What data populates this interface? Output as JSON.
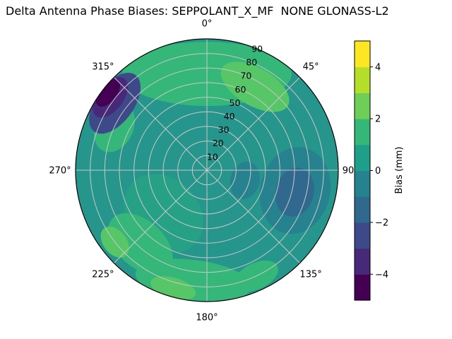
{
  "chart_data": {
    "type": "heatmap",
    "projection": "polar",
    "title": "Delta Antenna Phase Biases: SEPPOLANT_X_MF  NONE GLONASS-L2",
    "azimuth_tick_labels": [
      {
        "angle": 0,
        "label": "0°"
      },
      {
        "angle": 45,
        "label": "45°"
      },
      {
        "angle": 90,
        "label": "90"
      },
      {
        "angle": 135,
        "label": "135°"
      },
      {
        "angle": 180,
        "label": "180°"
      },
      {
        "angle": 225,
        "label": "225°"
      },
      {
        "angle": 270,
        "label": "270°"
      },
      {
        "angle": 315,
        "label": "315°"
      }
    ],
    "radial_ticks": [
      10,
      20,
      30,
      40,
      50,
      60,
      70,
      80,
      90
    ],
    "radial_max": 90,
    "radial_label_azimuth_deg": 22.5,
    "grid_color": "#c8c8c8",
    "base_color": "#26958b",
    "base_bias_mm": 0.5,
    "regions": [
      {
        "name": "lower-left-soft-green",
        "azimuth_deg": 225,
        "radius": 42,
        "tangential_halfwidth": 30,
        "radial_halfwidth": 24,
        "color": "#27a186",
        "bias_mm": 1
      },
      {
        "name": "top-green-band",
        "azimuth_deg": 0,
        "radius": 66,
        "tangential_halfwidth": 58,
        "radial_halfwidth": 22,
        "color": "#35b779",
        "bias_mm": 1.5
      },
      {
        "name": "top-right-bright-green",
        "azimuth_deg": 30,
        "radius": 66,
        "tangential_halfwidth": 26,
        "radial_halfwidth": 13,
        "color": "#56c667",
        "bias_mm": 2
      },
      {
        "name": "upper-left-green",
        "azimuth_deg": 295,
        "radius": 70,
        "tangential_halfwidth": 18,
        "radial_halfwidth": 13,
        "color": "#35b779",
        "bias_mm": 1.5
      },
      {
        "name": "right-dark-halo",
        "azimuth_deg": 103,
        "radius": 62,
        "tangential_halfwidth": 30,
        "radial_halfwidth": 24,
        "color": "#26828e",
        "bias_mm": -0.5
      },
      {
        "name": "right-dark-core",
        "azimuth_deg": 104,
        "radius": 62,
        "tangential_halfwidth": 17,
        "radial_halfwidth": 13,
        "color": "#31688e",
        "bias_mm": -1.5
      },
      {
        "name": "center-right-dark",
        "azimuth_deg": 105,
        "radius": 27,
        "tangential_halfwidth": 13,
        "radial_halfwidth": 10,
        "color": "#26828e",
        "bias_mm": -0.5
      },
      {
        "name": "bottom-right-rim-green",
        "azimuth_deg": 155,
        "radius": 80,
        "tangential_halfwidth": 16,
        "radial_halfwidth": 9,
        "color": "#35b779",
        "bias_mm": 1.5
      },
      {
        "name": "bottom-green-arc",
        "azimuth_deg": 187,
        "radius": 76,
        "tangential_halfwidth": 40,
        "radial_halfwidth": 14,
        "color": "#35b779",
        "bias_mm": 1.5
      },
      {
        "name": "bottom-left-green",
        "azimuth_deg": 222,
        "radius": 68,
        "tangential_halfwidth": 26,
        "radial_halfwidth": 16,
        "color": "#35b779",
        "bias_mm": 1.5
      },
      {
        "name": "bottom-bright-green-1",
        "azimuth_deg": 196,
        "radius": 84,
        "tangential_halfwidth": 16,
        "radial_halfwidth": 7,
        "color": "#56c667",
        "bias_mm": 2
      },
      {
        "name": "bottom-bright-green-2",
        "azimuth_deg": 232,
        "radius": 80,
        "tangential_halfwidth": 12,
        "radial_halfwidth": 8,
        "color": "#56c667",
        "bias_mm": 2
      },
      {
        "name": "rim-purple-halo",
        "azimuth_deg": 306,
        "radius": 78,
        "tangential_halfwidth": 24,
        "radial_halfwidth": 13,
        "color": "#3e4989",
        "bias_mm": -2.5
      },
      {
        "name": "rim-purple-mid",
        "azimuth_deg": 307,
        "radius": 83,
        "tangential_halfwidth": 16,
        "radial_halfwidth": 9,
        "color": "#482878",
        "bias_mm": -3.5
      },
      {
        "name": "rim-purple-core",
        "azimuth_deg": 308,
        "radius": 86,
        "tangential_halfwidth": 11,
        "radial_halfwidth": 6,
        "color": "#440154",
        "bias_mm": -4.5
      }
    ],
    "colorbar": {
      "label": "Bias (mm)",
      "min": -5,
      "max": 5,
      "tick_values": [
        -4,
        -2,
        0,
        2,
        4
      ],
      "tick_labels": [
        "−4",
        "−2",
        "0",
        "2",
        "4"
      ],
      "band_colors": [
        "#440154",
        "#482878",
        "#3e4989",
        "#31688e",
        "#26828e",
        "#1f9e89",
        "#35b779",
        "#6ece58",
        "#b5de2b",
        "#fde725"
      ]
    }
  }
}
